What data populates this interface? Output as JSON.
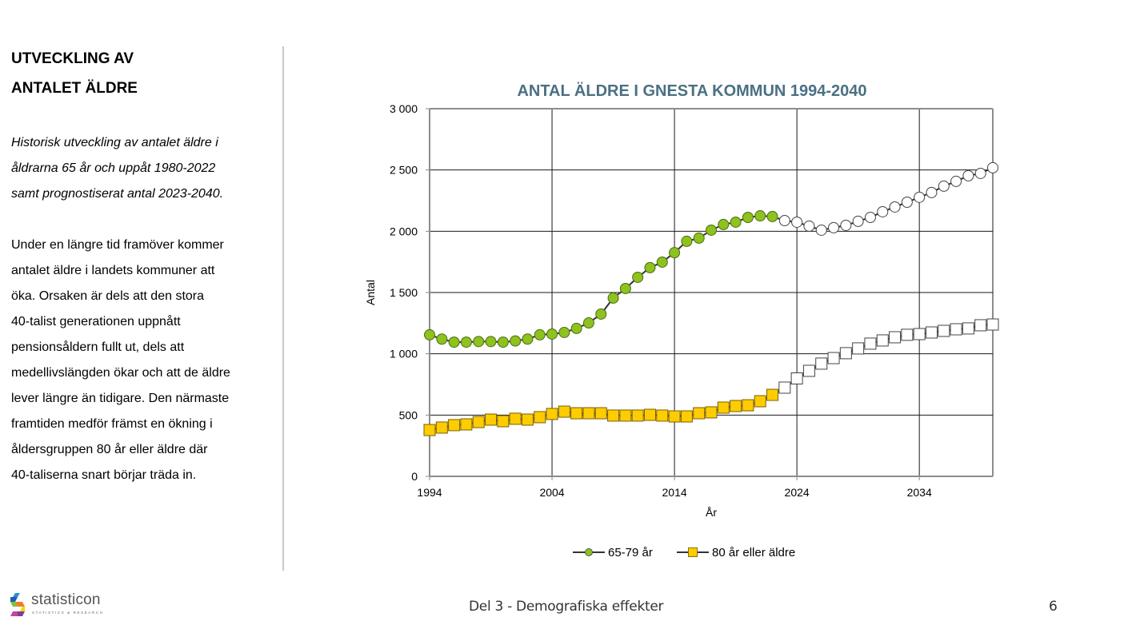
{
  "sidebar": {
    "heading_line1": "UTVECKLING AV",
    "heading_line2": "ANTALET ÄLDRE",
    "intro_lines": [
      "Historisk utveckling av antalet äldre i",
      "åldrarna 65 år och uppåt 1980-2022",
      "samt prognostiserat antal 2023-2040."
    ],
    "body_lines": [
      "Under en längre tid framöver kommer",
      "antalet äldre i landets kommuner att",
      "öka. Orsaken är dels att den stora",
      "40-talist generationen uppnått",
      "pensionsåldern fullt ut, dels att",
      "medellivslängden ökar och att de äldre",
      "lever längre än tidigare. Den närmaste",
      "framtiden medför främst en ökning i",
      "åldersgruppen 80 år eller äldre där",
      "40-taliserna snart börjar träda in."
    ]
  },
  "footer": {
    "title": "Del 3 - Demografiska effekter",
    "page_number": "6",
    "logo_name": "statisticon",
    "logo_tagline": "STATISTICS & RESEARCH",
    "logo_colors": [
      "#2a8fd6",
      "#1f5fa8",
      "#7cc242",
      "#f07e26",
      "#ffd200",
      "#c2459e",
      "#7b3f98"
    ]
  },
  "chart_data": {
    "type": "line",
    "title": "ANTAL ÄLDRE I GNESTA KOMMUN 1994-2040",
    "xlabel": "År",
    "ylabel": "Antal",
    "xlim": [
      1994,
      2040
    ],
    "ylim": [
      0,
      3000
    ],
    "xticks": [
      1994,
      2004,
      2014,
      2024,
      2034
    ],
    "yticks": [
      0,
      500,
      1000,
      1500,
      2000,
      2500,
      3000
    ],
    "ytick_labels": [
      "0",
      "500",
      "1 000",
      "1 500",
      "2 000",
      "2 500",
      "3 000"
    ],
    "grid": true,
    "legend_position": "bottom",
    "historical_last_year": 2022,
    "note": "Filled markers = historical (1994-2022), hollow white markers = forecast (2023-2040)",
    "x": [
      1994,
      1995,
      1996,
      1997,
      1998,
      1999,
      2000,
      2001,
      2002,
      2003,
      2004,
      2005,
      2006,
      2007,
      2008,
      2009,
      2010,
      2011,
      2012,
      2013,
      2014,
      2015,
      2016,
      2017,
      2018,
      2019,
      2020,
      2021,
      2022,
      2023,
      2024,
      2025,
      2026,
      2027,
      2028,
      2029,
      2030,
      2031,
      2032,
      2033,
      2034,
      2035,
      2036,
      2037,
      2038,
      2039,
      2040
    ],
    "series": [
      {
        "name": "65-79 år",
        "marker": "circle",
        "color": "#8dc21f",
        "values": [
          1155,
          1120,
          1095,
          1095,
          1100,
          1100,
          1095,
          1105,
          1120,
          1155,
          1161,
          1174,
          1207,
          1252,
          1324,
          1455,
          1533,
          1624,
          1703,
          1748,
          1825,
          1918,
          1944,
          2009,
          2055,
          2074,
          2113,
          2126,
          2120,
          2087,
          2074,
          2042,
          2009,
          2029,
          2048,
          2081,
          2113,
          2159,
          2198,
          2237,
          2277,
          2316,
          2368,
          2407,
          2453,
          2472,
          2518
        ]
      },
      {
        "name": "80 år eller äldre",
        "marker": "square",
        "color": "#ffcc00",
        "values": [
          378,
          398,
          418,
          424,
          443,
          463,
          450,
          470,
          463,
          483,
          509,
          528,
          515,
          515,
          515,
          496,
          496,
          496,
          502,
          496,
          489,
          489,
          515,
          522,
          561,
          574,
          580,
          613,
          665,
          724,
          799,
          861,
          920,
          965,
          1005,
          1044,
          1083,
          1109,
          1135,
          1155,
          1161,
          1174,
          1187,
          1200,
          1207,
          1233,
          1239
        ]
      }
    ]
  }
}
